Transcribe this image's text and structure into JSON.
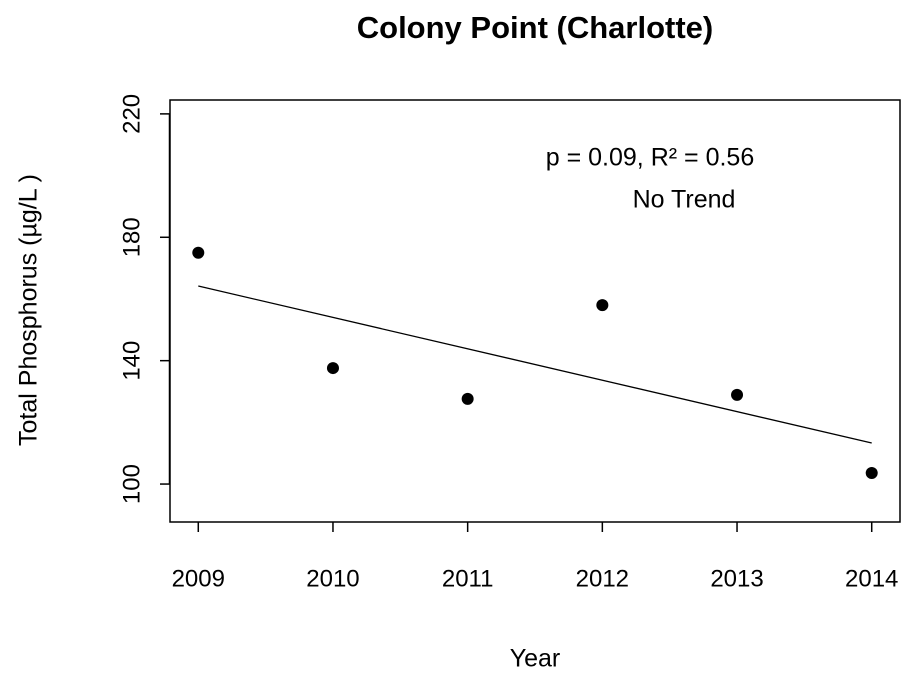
{
  "chart_data": {
    "type": "scatter",
    "title": "Colony Point (Charlotte)",
    "xlabel": "Year",
    "ylabel": "Total Phosphorus (µg/L )",
    "annotations": [
      "p = 0.09, R² = 0.56",
      "No Trend"
    ],
    "x": [
      2009,
      2010,
      2011,
      2012,
      2013,
      2014
    ],
    "values": [
      175,
      137.6,
      127.6,
      158,
      128.9,
      103.6
    ],
    "color": "#000000",
    "trend": {
      "x": [
        2009,
        2014
      ],
      "values": [
        164.2,
        113.3
      ]
    },
    "xlim": [
      2008.79,
      2014.21
    ],
    "ylim": [
      87.7,
      224.5
    ],
    "xticks": [
      2009,
      2010,
      2011,
      2012,
      2013,
      2014
    ],
    "yticks": [
      100,
      140,
      180,
      220
    ],
    "grid": false
  }
}
